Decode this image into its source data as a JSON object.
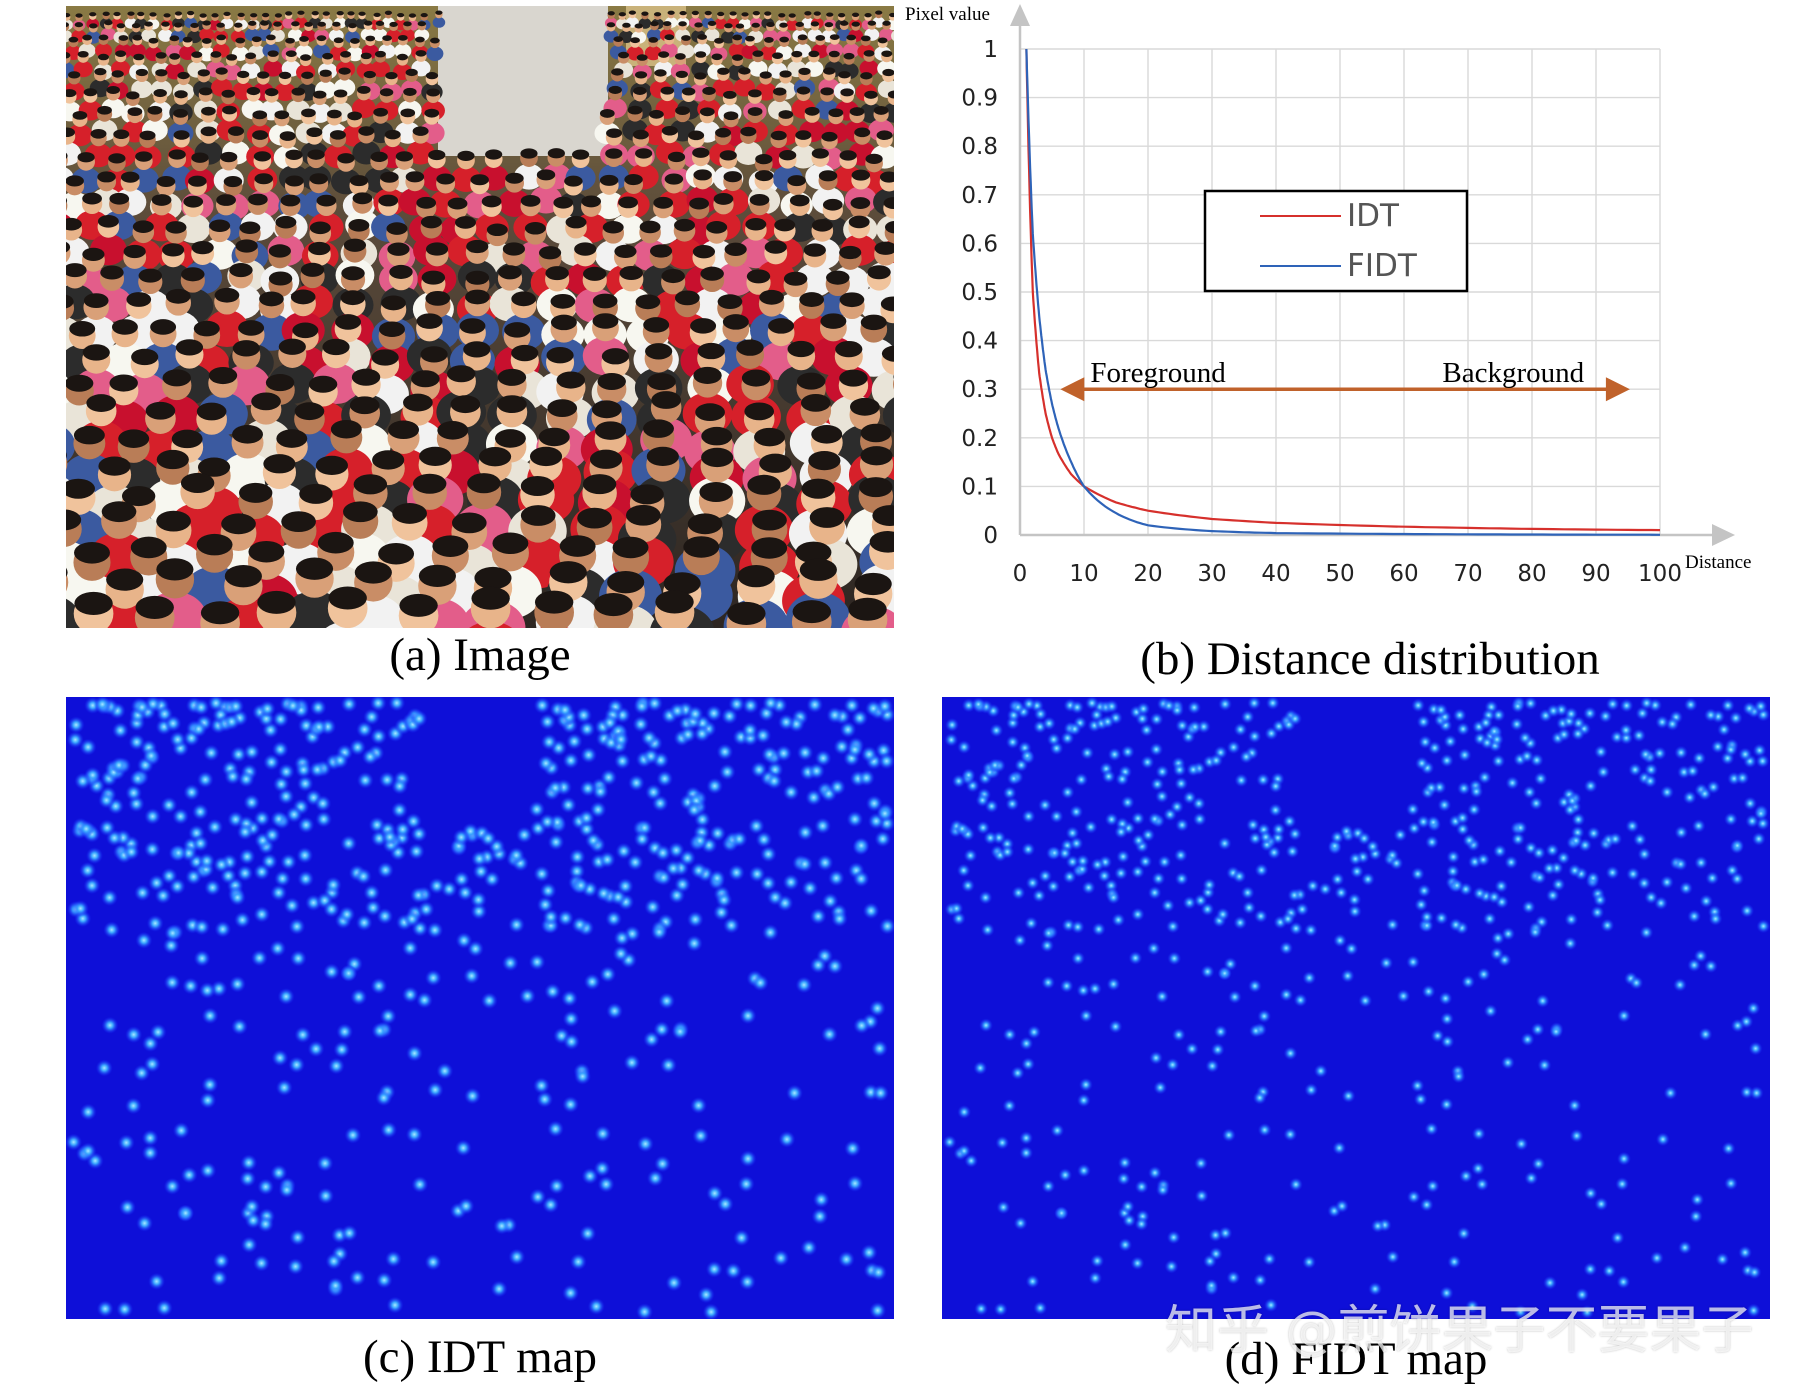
{
  "panels": {
    "a": {
      "caption": "(a) Image"
    },
    "b": {
      "caption": "(b) Distance distribution"
    },
    "c": {
      "caption": "(c) IDT map"
    },
    "d": {
      "caption": "(d) FIDT map"
    }
  },
  "watermark": "知乎 @煎饼果子不要果子",
  "colors": {
    "idt": "#d6302c",
    "fidt": "#2e63b8",
    "arrow": "#c0622b",
    "map_bg": "#0e0fd8",
    "dot": "#43b8ff"
  },
  "chart_data": {
    "type": "line",
    "ylabel": "Pixel value",
    "xlabel": "Distance",
    "xlim": [
      0,
      100
    ],
    "ylim": [
      0,
      1
    ],
    "xticks": [
      0,
      10,
      20,
      30,
      40,
      50,
      60,
      70,
      80,
      90,
      100
    ],
    "yticks": [
      "0",
      "0.1",
      "0.2",
      "0.3",
      "0.4",
      "0.5",
      "0.6",
      "0.7",
      "0.8",
      "0.9",
      "1"
    ],
    "grid": true,
    "legend_position": "center",
    "series": [
      {
        "name": "IDT",
        "x": [
          1,
          2,
          3,
          4,
          5,
          6,
          8,
          10,
          15,
          20,
          30,
          40,
          60,
          80,
          100
        ],
        "values": [
          1.0,
          0.5,
          0.333,
          0.25,
          0.2,
          0.167,
          0.125,
          0.1,
          0.067,
          0.05,
          0.033,
          0.025,
          0.017,
          0.0125,
          0.01
        ]
      },
      {
        "name": "FIDT",
        "x": [
          1,
          2,
          3,
          4,
          5,
          6,
          8,
          10,
          15,
          20,
          30,
          40,
          60,
          80,
          100
        ],
        "values": [
          1.0,
          0.62,
          0.45,
          0.34,
          0.27,
          0.22,
          0.15,
          0.1,
          0.045,
          0.02,
          0.008,
          0.004,
          0.002,
          0.001,
          0.0005
        ]
      }
    ],
    "annotations": [
      {
        "text": "Foreground"
      },
      {
        "text": "Background"
      }
    ]
  }
}
